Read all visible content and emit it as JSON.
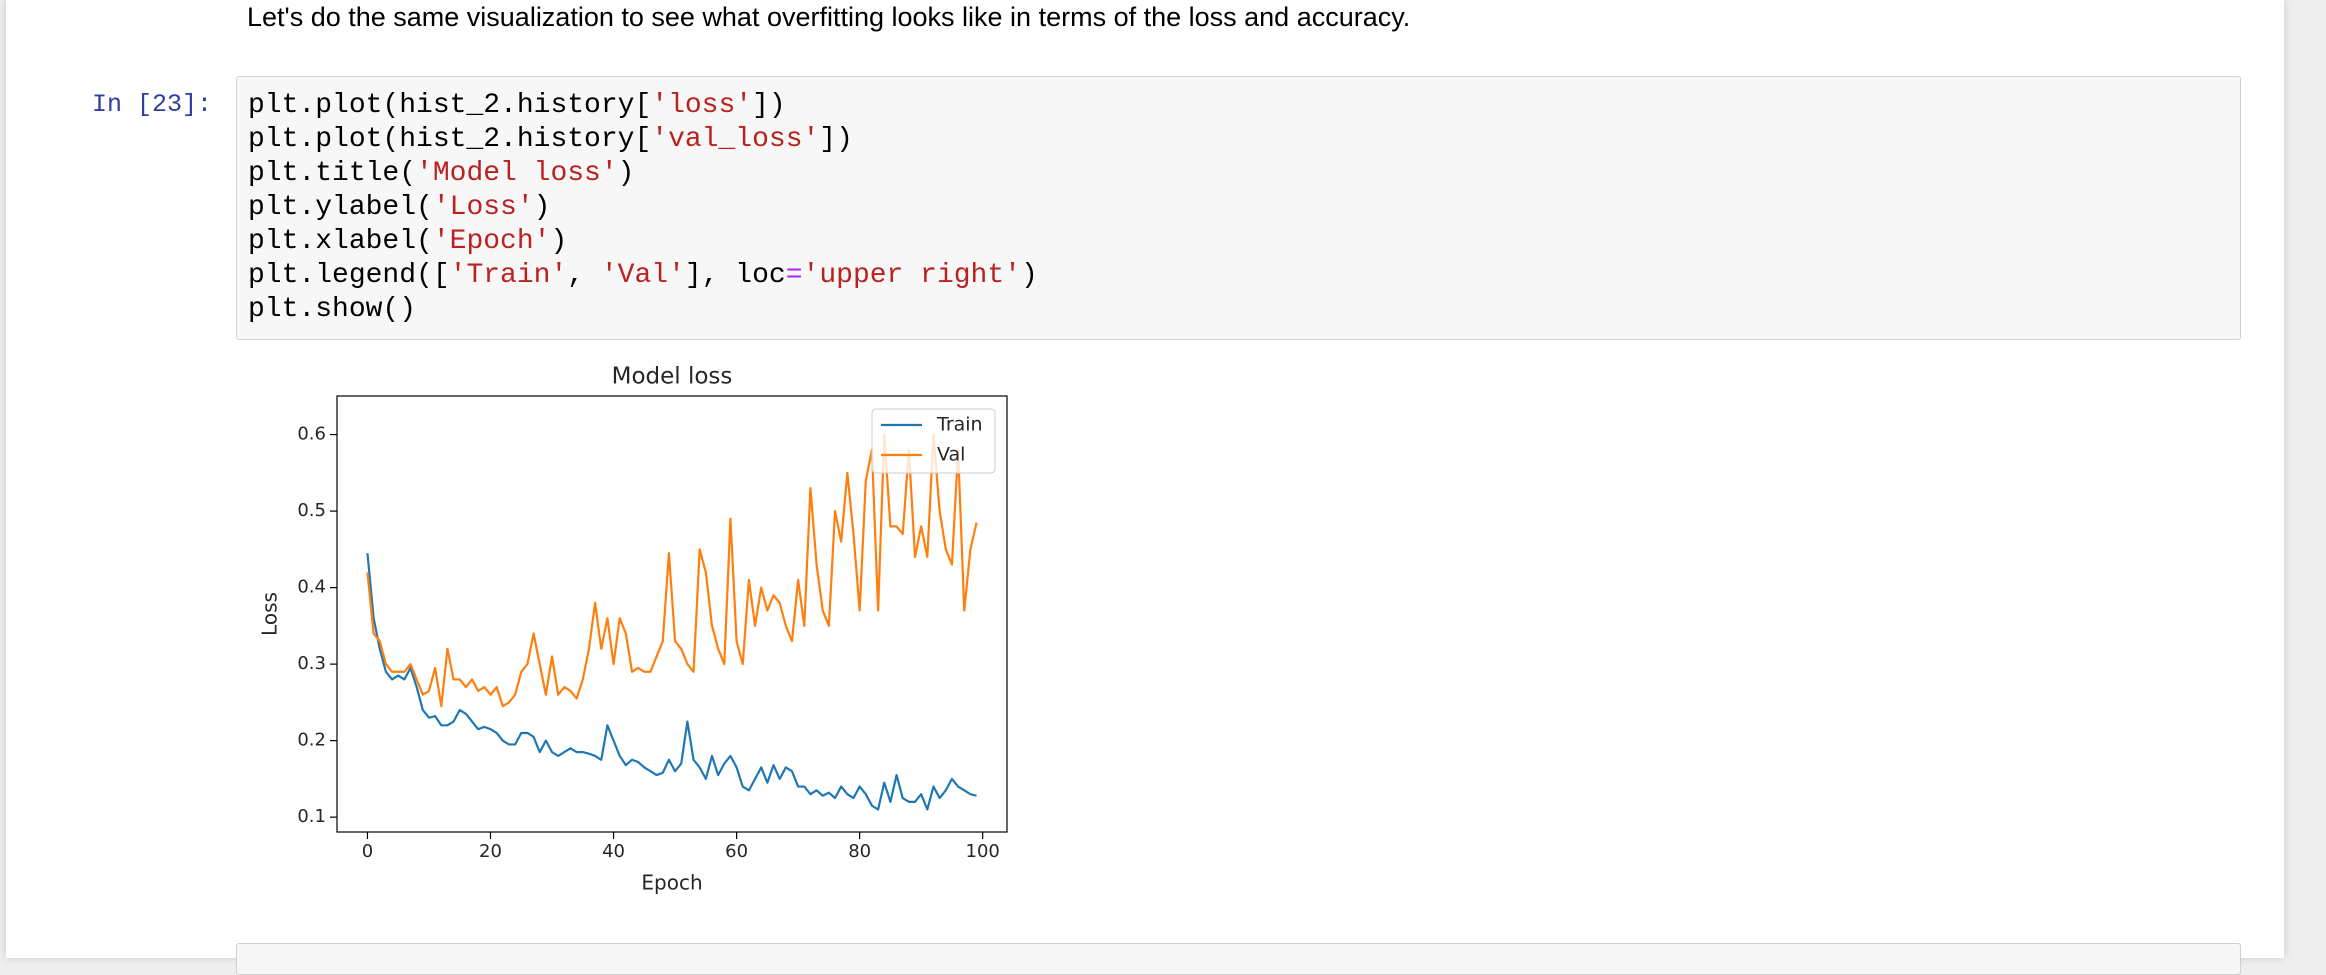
{
  "markdown": {
    "text": "Let's do the same visualization to see what overfitting looks like in terms of the loss and accuracy."
  },
  "code_cell": {
    "prompt": "In [23]:",
    "lines": [
      [
        "plt.plot(hist_2.history[",
        "'loss'",
        "])"
      ],
      [
        "plt.plot(hist_2.history[",
        "'val_loss'",
        "])"
      ],
      [
        "plt.title(",
        "'Model loss'",
        ")"
      ],
      [
        "plt.ylabel(",
        "'Loss'",
        ")"
      ],
      [
        "plt.xlabel(",
        "'Epoch'",
        ")"
      ],
      [
        "plt.legend([",
        "'Train'",
        ", ",
        "'Val'",
        "], loc",
        "=",
        "'upper right'",
        ")"
      ],
      [
        "plt.show()"
      ]
    ]
  },
  "chart_data": {
    "type": "line",
    "title": "Model loss",
    "x_label": "Epoch",
    "y_label": "Loss",
    "x": [
      0,
      1,
      2,
      3,
      4,
      5,
      6,
      7,
      8,
      9,
      10,
      11,
      12,
      13,
      14,
      15,
      16,
      17,
      18,
      19,
      20,
      21,
      22,
      23,
      24,
      25,
      26,
      27,
      28,
      29,
      30,
      31,
      32,
      33,
      34,
      35,
      36,
      37,
      38,
      39,
      40,
      41,
      42,
      43,
      44,
      45,
      46,
      47,
      48,
      49,
      50,
      51,
      52,
      53,
      54,
      55,
      56,
      57,
      58,
      59,
      60,
      61,
      62,
      63,
      64,
      65,
      66,
      67,
      68,
      69,
      70,
      71,
      72,
      73,
      74,
      75,
      76,
      77,
      78,
      79,
      80,
      81,
      82,
      83,
      84,
      85,
      86,
      87,
      88,
      89,
      90,
      91,
      92,
      93,
      94,
      95,
      96,
      97,
      98,
      99
    ],
    "series": [
      {
        "name": "Train",
        "color": "#1f77b4",
        "values": [
          0.445,
          0.36,
          0.32,
          0.29,
          0.28,
          0.285,
          0.28,
          0.295,
          0.27,
          0.24,
          0.23,
          0.232,
          0.22,
          0.22,
          0.225,
          0.24,
          0.235,
          0.225,
          0.215,
          0.218,
          0.215,
          0.21,
          0.2,
          0.195,
          0.195,
          0.21,
          0.21,
          0.205,
          0.185,
          0.2,
          0.185,
          0.18,
          0.185,
          0.19,
          0.185,
          0.185,
          0.183,
          0.18,
          0.175,
          0.22,
          0.2,
          0.18,
          0.168,
          0.175,
          0.172,
          0.165,
          0.16,
          0.155,
          0.158,
          0.175,
          0.16,
          0.17,
          0.225,
          0.175,
          0.165,
          0.15,
          0.18,
          0.155,
          0.17,
          0.18,
          0.165,
          0.14,
          0.135,
          0.15,
          0.165,
          0.145,
          0.168,
          0.15,
          0.165,
          0.16,
          0.14,
          0.14,
          0.13,
          0.135,
          0.128,
          0.132,
          0.125,
          0.14,
          0.13,
          0.125,
          0.14,
          0.13,
          0.115,
          0.11,
          0.145,
          0.12,
          0.155,
          0.125,
          0.12,
          0.12,
          0.13,
          0.11,
          0.14,
          0.125,
          0.135,
          0.15,
          0.14,
          0.135,
          0.13,
          0.128
        ]
      },
      {
        "name": "Val",
        "color": "#ff7f0e",
        "values": [
          0.42,
          0.34,
          0.33,
          0.3,
          0.29,
          0.29,
          0.29,
          0.3,
          0.28,
          0.26,
          0.265,
          0.295,
          0.245,
          0.32,
          0.28,
          0.28,
          0.27,
          0.28,
          0.265,
          0.27,
          0.26,
          0.27,
          0.245,
          0.25,
          0.26,
          0.29,
          0.3,
          0.34,
          0.3,
          0.26,
          0.31,
          0.26,
          0.27,
          0.265,
          0.255,
          0.28,
          0.32,
          0.38,
          0.32,
          0.36,
          0.3,
          0.36,
          0.34,
          0.29,
          0.295,
          0.29,
          0.29,
          0.31,
          0.33,
          0.445,
          0.33,
          0.32,
          0.3,
          0.29,
          0.45,
          0.42,
          0.35,
          0.32,
          0.3,
          0.49,
          0.33,
          0.3,
          0.41,
          0.35,
          0.4,
          0.37,
          0.39,
          0.38,
          0.35,
          0.33,
          0.41,
          0.35,
          0.53,
          0.43,
          0.37,
          0.35,
          0.5,
          0.46,
          0.55,
          0.47,
          0.37,
          0.54,
          0.58,
          0.37,
          0.6,
          0.48,
          0.48,
          0.47,
          0.58,
          0.44,
          0.48,
          0.44,
          0.6,
          0.5,
          0.45,
          0.43,
          0.58,
          0.37,
          0.45,
          0.485
        ]
      }
    ],
    "xlim": [
      -4.95,
      103.95
    ],
    "xticks": [
      0,
      20,
      40,
      60,
      80,
      100
    ],
    "ylim": [
      0.0806,
      0.6504
    ],
    "yticks": [
      0.1,
      0.2,
      0.3,
      0.4,
      0.5,
      0.6
    ],
    "legend": "upper right"
  }
}
